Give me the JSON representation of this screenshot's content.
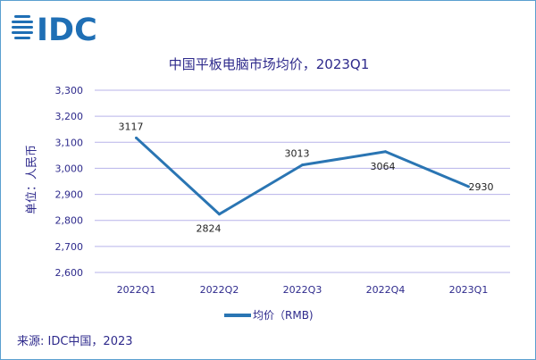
{
  "logo_text": "IDC",
  "chart_data": {
    "type": "line",
    "title": "中国平板电脑市场均价，2023Q1",
    "ylabel": "单位：人民币",
    "xlabel": "",
    "categories": [
      "2022Q1",
      "2022Q2",
      "2022Q3",
      "2022Q4",
      "2023Q1"
    ],
    "series": [
      {
        "name": "均价（RMB)",
        "values": [
          3117,
          2824,
          3013,
          3064,
          2930
        ],
        "color": "#2a75b3"
      }
    ],
    "data_labels": [
      "3117",
      "2824",
      "3013",
      "3064",
      "2930"
    ],
    "ylim": [
      2600,
      3300
    ],
    "yticks": [
      2600,
      2700,
      2800,
      2900,
      3000,
      3100,
      3200,
      3300
    ],
    "ytick_labels": [
      "2,600",
      "2,700",
      "2,800",
      "2,900",
      "3,000",
      "3,100",
      "3,200",
      "3,300"
    ],
    "grid": true,
    "legend": "bottom"
  },
  "source": "来源: IDC中国，2023"
}
